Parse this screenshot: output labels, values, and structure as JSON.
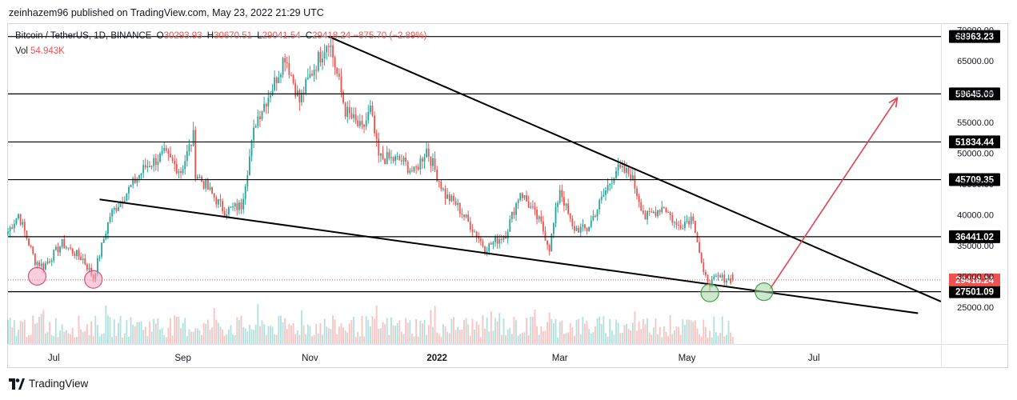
{
  "header": {
    "published_line": "zeinhazem96 published on TradingView.com, May 23, 2022 21:29 UTC"
  },
  "legend": {
    "symbol": "Bitcoin / TetherUS, 1D, BINANCE",
    "open_label": "O",
    "open_value": "30293.93",
    "high_label": "H",
    "high_value": "30670.51",
    "low_label": "L",
    "low_value": "29041.54",
    "close_label": "C",
    "close_value": "29418.24",
    "change_value": "−875.70 (−2.89%)",
    "vol_label": "Vol",
    "vol_value": "54.943K"
  },
  "footer": {
    "brand": "TradingView"
  },
  "colors": {
    "up": "#26a69a",
    "down": "#ef5350",
    "level_line": "#000000",
    "arrow": "#e0424f",
    "marker_pink": "#f4a6c0",
    "marker_green": "#a5d6a7"
  },
  "chart_data": {
    "type": "candlestick",
    "symbol": "BTCUSDT",
    "interval": "1D",
    "y_unit": "USDT",
    "ylim": [
      19000,
      71000
    ],
    "y_ticks": [
      25000,
      30000,
      35000,
      40000,
      45000,
      50000,
      55000,
      60000,
      65000,
      70000
    ],
    "x_ticks": [
      {
        "label": "Jul",
        "date": "2021-07-01",
        "bold": false
      },
      {
        "label": "Sep",
        "date": "2021-09-01",
        "bold": false
      },
      {
        "label": "Nov",
        "date": "2021-11-01",
        "bold": false
      },
      {
        "label": "2022",
        "date": "2022-01-01",
        "bold": true
      },
      {
        "label": "Mar",
        "date": "2022-03-01",
        "bold": false
      },
      {
        "label": "May",
        "date": "2022-05-01",
        "bold": false
      },
      {
        "label": "Jul",
        "date": "2022-07-01",
        "bold": false
      }
    ],
    "x_range": [
      "2021-06-09",
      "2022-08-31"
    ],
    "price_path": [
      [
        "2021-06-09",
        37300
      ],
      [
        "2021-06-14",
        40100
      ],
      [
        "2021-06-22",
        32500
      ],
      [
        "2021-06-26",
        31600
      ],
      [
        "2021-07-05",
        35300
      ],
      [
        "2021-07-15",
        32800
      ],
      [
        "2021-07-20",
        29800
      ],
      [
        "2021-07-28",
        39900
      ],
      [
        "2021-08-07",
        44600
      ],
      [
        "2021-08-14",
        47800
      ],
      [
        "2021-08-23",
        49800
      ],
      [
        "2021-08-31",
        47100
      ],
      [
        "2021-09-06",
        52700
      ],
      [
        "2021-09-07",
        46900
      ],
      [
        "2021-09-21",
        40600
      ],
      [
        "2021-09-29",
        41500
      ],
      [
        "2021-10-06",
        55300
      ],
      [
        "2021-10-15",
        61500
      ],
      [
        "2021-10-20",
        66000
      ],
      [
        "2021-10-27",
        58400
      ],
      [
        "2021-11-02",
        63300
      ],
      [
        "2021-11-10",
        68700
      ],
      [
        "2021-11-18",
        56900
      ],
      [
        "2021-11-26",
        53700
      ],
      [
        "2021-11-30",
        57000
      ],
      [
        "2021-12-04",
        49300
      ],
      [
        "2021-12-15",
        48800
      ],
      [
        "2021-12-21",
        46800
      ],
      [
        "2021-12-27",
        50700
      ],
      [
        "2022-01-05",
        43100
      ],
      [
        "2022-01-10",
        41800
      ],
      [
        "2022-01-21",
        36300
      ],
      [
        "2022-01-24",
        34500
      ],
      [
        "2022-02-03",
        36900
      ],
      [
        "2022-02-10",
        43800
      ],
      [
        "2022-02-20",
        38400
      ],
      [
        "2022-02-24",
        34600
      ],
      [
        "2022-03-01",
        44300
      ],
      [
        "2022-03-07",
        37800
      ],
      [
        "2022-03-14",
        37600
      ],
      [
        "2022-03-28",
        47400
      ],
      [
        "2022-04-04",
        46600
      ],
      [
        "2022-04-11",
        39500
      ],
      [
        "2022-04-20",
        41500
      ],
      [
        "2022-04-26",
        38100
      ],
      [
        "2022-05-04",
        39700
      ],
      [
        "2022-05-09",
        30100
      ],
      [
        "2022-05-12",
        28900
      ],
      [
        "2022-05-16",
        29800
      ],
      [
        "2022-05-23",
        29418.24
      ]
    ],
    "last_bar": {
      "date": "2022-05-23",
      "open": 30293.93,
      "high": 30670.51,
      "low": 29041.54,
      "close": 29418.24,
      "volume": "54.943K"
    },
    "horizontal_levels": [
      68963.23,
      59645.09,
      51834.44,
      45709.35,
      36441.02,
      27501.09
    ],
    "current_price_label": 29418.24,
    "trendlines": [
      {
        "from": [
          "2021-11-10",
          68963.23
        ],
        "to": [
          "2022-08-31",
          25900
        ]
      },
      {
        "from": [
          "2021-07-23",
          42500
        ],
        "to": [
          "2022-08-20",
          24000
        ]
      }
    ],
    "projection_arrow": {
      "from": [
        "2022-06-10",
        28000
      ],
      "to": [
        "2022-08-10",
        59000
      ]
    },
    "markers": [
      {
        "date": "2021-06-23",
        "price": 30000,
        "color": "pink"
      },
      {
        "date": "2021-07-20",
        "price": 29500,
        "color": "pink"
      },
      {
        "date": "2022-05-12",
        "price": 27300,
        "color": "green"
      },
      {
        "date": "2022-06-07",
        "price": 27500,
        "color": "green"
      }
    ]
  }
}
